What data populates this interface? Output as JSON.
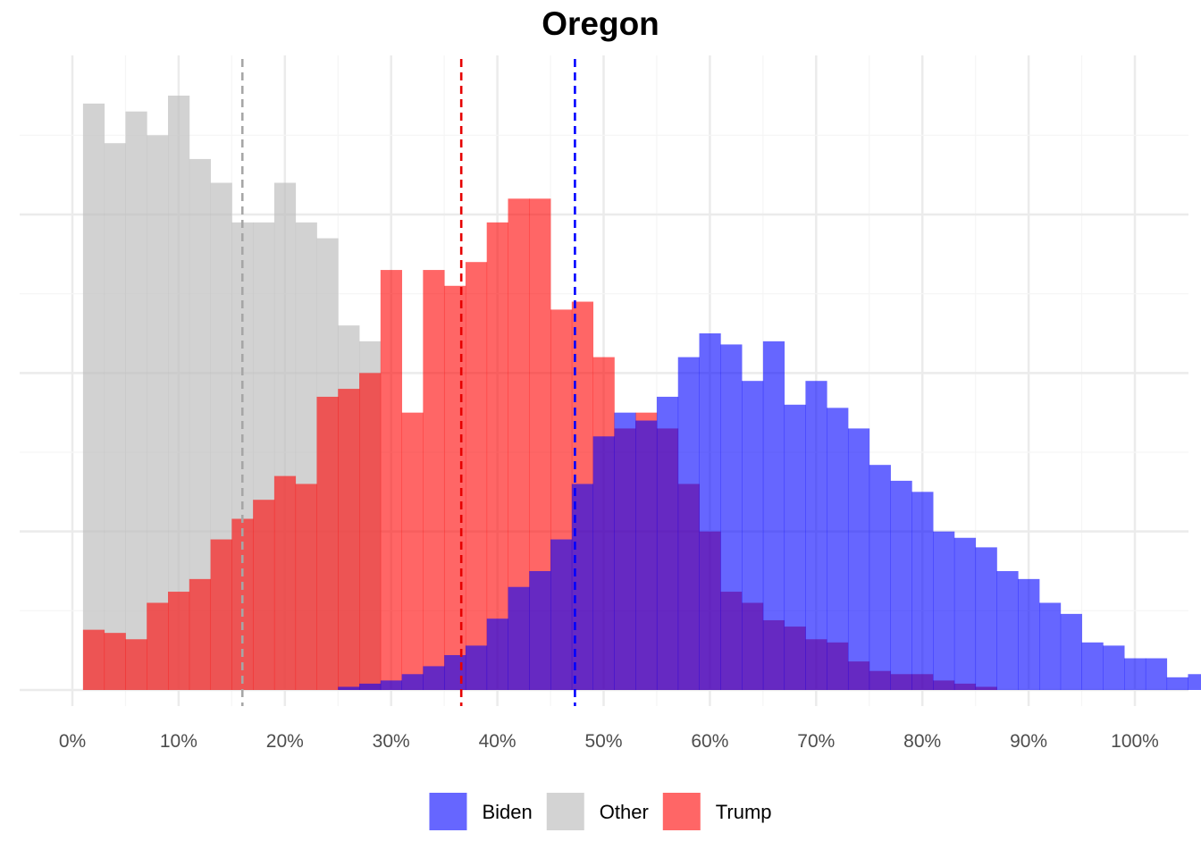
{
  "chart_data": {
    "type": "histogram",
    "title": "Oregon",
    "xlabel": "",
    "ylabel": "",
    "xlim": [
      0,
      1
    ],
    "bin_width": 0.02,
    "x_ticks": [
      "0%",
      "10%",
      "20%",
      "30%",
      "40%",
      "50%",
      "60%",
      "70%",
      "80%",
      "90%",
      "100%"
    ],
    "legend_position": "bottom",
    "grid": true,
    "series": [
      {
        "name": "Other",
        "color": "#bfbfbf",
        "opacity": 0.7,
        "mean": 0.16,
        "mean_line_color": "#a6a6a6",
        "bin_start": 0.01,
        "counts": [
          370,
          345,
          365,
          350,
          375,
          335,
          320,
          295,
          295,
          320,
          295,
          285,
          230,
          220,
          0,
          0,
          0,
          0,
          0,
          0,
          0,
          0,
          0,
          0,
          0,
          0,
          0,
          0,
          0,
          0,
          0,
          0,
          0,
          0,
          0,
          0,
          0,
          0,
          0,
          0,
          0,
          0,
          0,
          0
        ]
      },
      {
        "name": "Trump",
        "color": "#ff0000",
        "opacity": 0.6,
        "mean": 0.366,
        "mean_line_color": "#e60000",
        "bin_start": 0.01,
        "counts": [
          38,
          36,
          32,
          55,
          62,
          70,
          95,
          108,
          120,
          135,
          130,
          185,
          190,
          200,
          265,
          175,
          265,
          255,
          270,
          295,
          310,
          310,
          240,
          245,
          210,
          165,
          175,
          165,
          130,
          100,
          62,
          55,
          44,
          40,
          32,
          30,
          18,
          12,
          10,
          10,
          6,
          4,
          2,
          0
        ]
      },
      {
        "name": "Biden",
        "color": "#0000ff",
        "opacity": 0.6,
        "mean": 0.473,
        "mean_line_color": "#0000ff",
        "bin_start": 0.01,
        "counts": [
          0,
          0,
          0,
          0,
          0,
          0,
          0,
          0,
          0,
          0,
          0,
          0,
          2,
          4,
          6,
          10,
          15,
          22,
          28,
          45,
          65,
          75,
          95,
          130,
          160,
          175,
          170,
          185,
          210,
          225,
          218,
          195,
          220,
          180,
          195,
          178,
          165,
          142,
          132,
          125,
          100,
          96,
          90,
          75,
          70,
          55,
          48,
          30,
          28,
          20,
          20,
          8,
          10,
          3,
          3,
          2,
          2,
          1
        ]
      }
    ],
    "legend": [
      {
        "label": "Biden",
        "color": "#6666ff"
      },
      {
        "label": "Other",
        "color": "#d3d3d3"
      },
      {
        "label": "Trump",
        "color": "#ff6666"
      }
    ]
  }
}
